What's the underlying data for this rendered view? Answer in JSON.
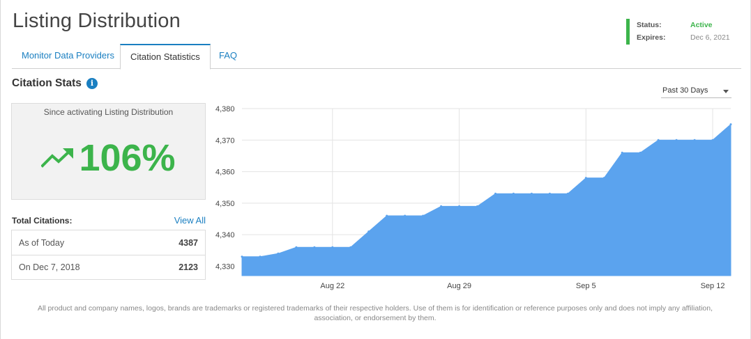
{
  "page": {
    "title": "Listing Distribution"
  },
  "status": {
    "status_label": "Status:",
    "status_value": "Active",
    "expires_label": "Expires:",
    "expires_value": "Dec 6, 2021",
    "status_color": "#3cb44b"
  },
  "tabs": [
    {
      "label": "Monitor Data Providers",
      "active": false
    },
    {
      "label": "Citation Statistics",
      "active": true
    },
    {
      "label": "FAQ",
      "active": false
    }
  ],
  "section": {
    "title": "Citation Stats",
    "info_icon": "info-icon"
  },
  "growth": {
    "caption": "Since activating Listing Distribution",
    "value": "106%",
    "icon": "trending-up-icon"
  },
  "totals": {
    "label": "Total Citations:",
    "view_all": "View All",
    "rows": [
      {
        "label": "As of Today",
        "value": "4387"
      },
      {
        "label": "On Dec 7, 2018",
        "value": "2123"
      }
    ]
  },
  "range": {
    "selected": "Past 30 Days"
  },
  "chart_data": {
    "type": "area",
    "color": "#5ba3ee",
    "ylim": [
      4327,
      4380
    ],
    "yticks": [
      4330,
      4340,
      4350,
      4360,
      4370,
      4380
    ],
    "ytick_labels": [
      "4,330",
      "4,340",
      "4,350",
      "4,360",
      "4,370",
      "4,380"
    ],
    "xticks": [
      {
        "x": "2021-08-22",
        "label": "Aug 22"
      },
      {
        "x": "2021-08-29",
        "label": "Aug 29"
      },
      {
        "x": "2021-09-05",
        "label": "Sep 5"
      },
      {
        "x": "2021-09-12",
        "label": "Sep 12"
      }
    ],
    "x": [
      "2021-08-17",
      "2021-08-18",
      "2021-08-19",
      "2021-08-20",
      "2021-08-21",
      "2021-08-22",
      "2021-08-23",
      "2021-08-24",
      "2021-08-25",
      "2021-08-26",
      "2021-08-27",
      "2021-08-28",
      "2021-08-29",
      "2021-08-30",
      "2021-08-31",
      "2021-09-01",
      "2021-09-02",
      "2021-09-03",
      "2021-09-04",
      "2021-09-05",
      "2021-09-06",
      "2021-09-07",
      "2021-09-08",
      "2021-09-09",
      "2021-09-10",
      "2021-09-11",
      "2021-09-12",
      "2021-09-13"
    ],
    "values": [
      4333,
      4333,
      4334,
      4336,
      4336,
      4336,
      4336,
      4341,
      4346,
      4346,
      4346,
      4349,
      4349,
      4349,
      4353,
      4353,
      4353,
      4353,
      4353,
      4358,
      4358,
      4366,
      4366,
      4370,
      4370,
      4370,
      4370,
      4375
    ],
    "grid": true
  },
  "footer": {
    "text": "All product and company names, logos, brands are trademarks or registered trademarks of their respective holders. Use of them is for identification or reference purposes only and does not imply any affiliation, association, or endorsement by them."
  }
}
